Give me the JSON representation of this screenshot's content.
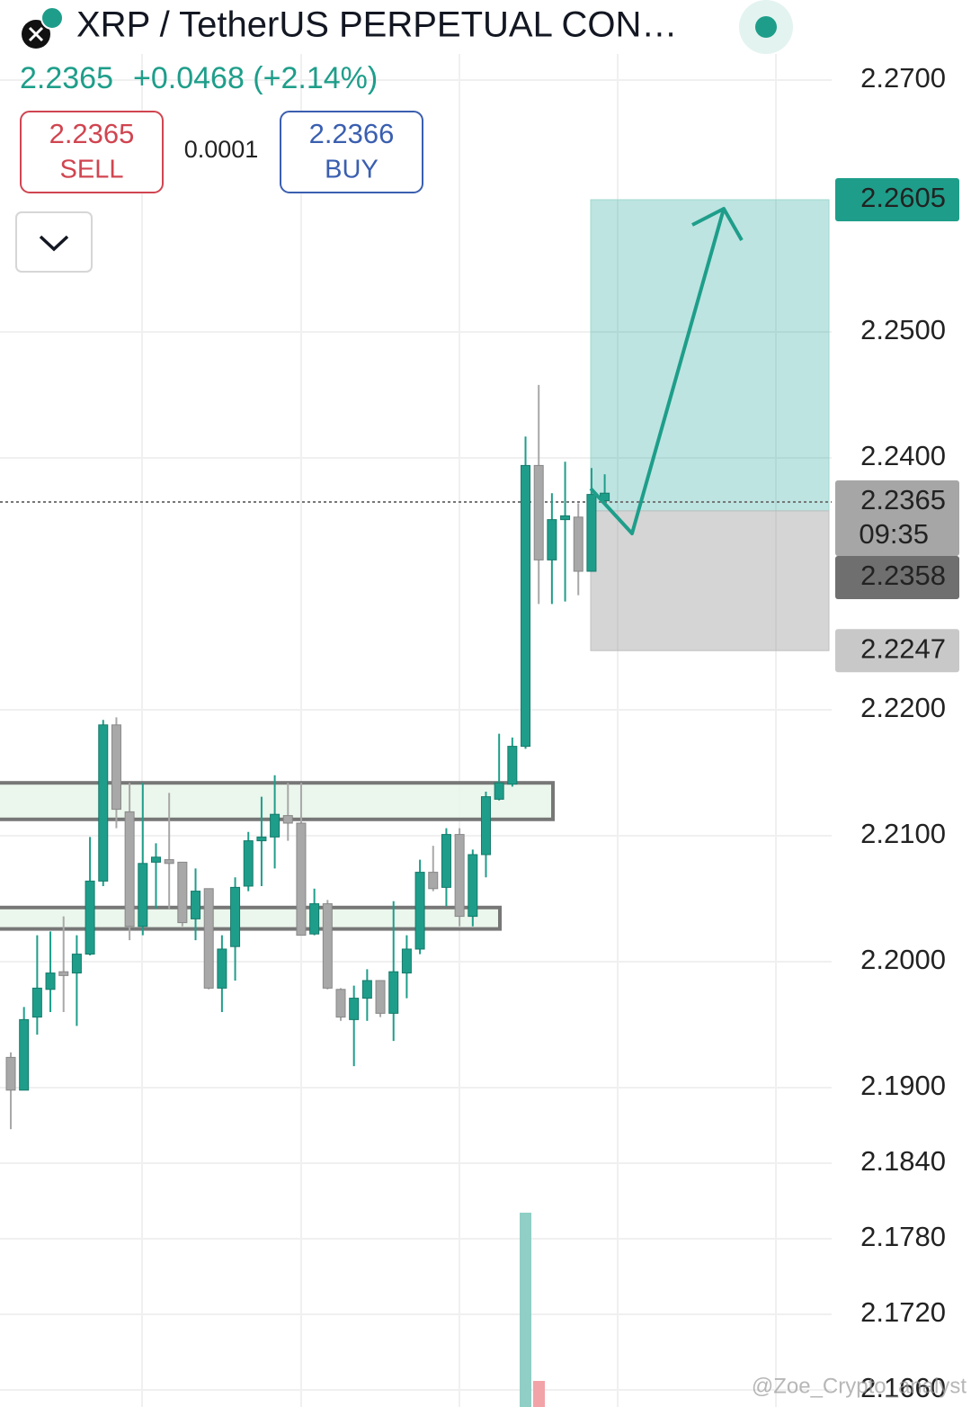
{
  "header": {
    "title": "XRP / TetherUS PERPETUAL CON…",
    "price": "2.2365",
    "change": "+0.0468 (+2.14%)",
    "sell_price": "2.2365",
    "sell_label": "SELL",
    "spread": "0.0001",
    "buy_price": "2.2366",
    "buy_label": "BUY",
    "watermark": "@Zoe_Crypto_analyst"
  },
  "chart_data": {
    "type": "candlestick",
    "open": [
      2.1924,
      2.1898,
      2.1956,
      2.1978,
      2.1992,
      2.1991,
      2.2006,
      2.2064,
      2.2188,
      2.2119,
      2.2028,
      2.2079,
      2.2081,
      2.2079,
      2.2034,
      2.2058,
      2.1979,
      2.2012,
      2.206,
      2.2096,
      2.2099,
      2.2116,
      2.211,
      2.2022,
      2.2046,
      2.1978,
      2.1954,
      2.1971,
      2.1985,
      2.1959,
      2.1991,
      2.201,
      2.2071,
      2.2059,
      2.2101,
      2.2036,
      2.2085,
      2.2129,
      2.2141,
      2.2171,
      2.2394,
      2.2319,
      2.2351,
      2.2353,
      2.231,
      2.2366
    ],
    "high": [
      2.1928,
      2.1964,
      2.2021,
      2.2024,
      2.2036,
      2.2021,
      2.2099,
      2.2192,
      2.2194,
      2.2142,
      2.2142,
      2.2094,
      2.2134,
      2.2079,
      2.2074,
      2.2058,
      2.2021,
      2.2067,
      2.2103,
      2.2131,
      2.2148,
      2.2142,
      2.2142,
      2.2058,
      2.2049,
      2.1979,
      2.1981,
      2.1994,
      2.1985,
      2.2048,
      2.2021,
      2.2081,
      2.2092,
      2.2106,
      2.2106,
      2.2089,
      2.2135,
      2.2181,
      2.2178,
      2.2417,
      2.2458,
      2.2372,
      2.2397,
      2.2364,
      2.2392,
      2.2387
    ],
    "low": [
      2.1867,
      2.1898,
      2.1942,
      2.196,
      2.196,
      2.1949,
      2.2005,
      2.206,
      2.2106,
      2.2017,
      2.2021,
      2.2042,
      2.2042,
      2.2028,
      2.2017,
      2.1978,
      2.196,
      2.1985,
      2.2056,
      2.206,
      2.2074,
      2.2096,
      2.2021,
      2.2021,
      2.1978,
      2.1953,
      2.1917,
      2.1953,
      2.1956,
      2.1937,
      2.1971,
      2.2006,
      2.2056,
      2.2044,
      2.2028,
      2.2028,
      2.2067,
      2.2128,
      2.2139,
      2.2169,
      2.2284,
      2.2284,
      2.2286,
      2.2291,
      2.231,
      2.2366
    ],
    "close": [
      2.1898,
      2.1954,
      2.1979,
      2.1991,
      2.1989,
      2.2006,
      2.2064,
      2.2188,
      2.2121,
      2.2028,
      2.2078,
      2.2083,
      2.2078,
      2.2031,
      2.2056,
      2.1979,
      2.201,
      2.2059,
      2.2096,
      2.2099,
      2.2117,
      2.211,
      2.2021,
      2.2046,
      2.1979,
      2.1956,
      2.1971,
      2.1985,
      2.1959,
      2.1992,
      2.201,
      2.2071,
      2.2058,
      2.2101,
      2.2036,
      2.2085,
      2.2131,
      2.2142,
      2.2171,
      2.2394,
      2.2319,
      2.2351,
      2.2354,
      2.231,
      2.2371,
      2.2372
    ],
    "up_color": "#1e9e8a",
    "down_color": "#a8a8a8",
    "ylim": [
      2.16464,
      2.27636
    ],
    "yticks": [
      {
        "value": 2.27,
        "label": "2.2700"
      },
      {
        "value": 2.25,
        "label": "2.2500"
      },
      {
        "value": 2.24,
        "label": "2.2400"
      },
      {
        "value": 2.22,
        "label": "2.2200"
      },
      {
        "value": 2.21,
        "label": "2.2100"
      },
      {
        "value": 2.2,
        "label": "2.2000"
      },
      {
        "value": 2.19,
        "label": "2.1900"
      },
      {
        "value": 2.184,
        "label": "2.1840"
      },
      {
        "value": 2.178,
        "label": "2.1780"
      },
      {
        "value": 2.172,
        "label": "2.1720"
      },
      {
        "value": 2.166,
        "label": "2.1660"
      }
    ],
    "grid": true,
    "current_price": 2.2365,
    "countdown": "09:35",
    "position": {
      "target": 2.2605,
      "entry": 2.2358,
      "stop": 2.2247
    },
    "zones": [
      [
        2.2142,
        2.2113
      ],
      [
        2.2043,
        2.2026
      ]
    ]
  }
}
